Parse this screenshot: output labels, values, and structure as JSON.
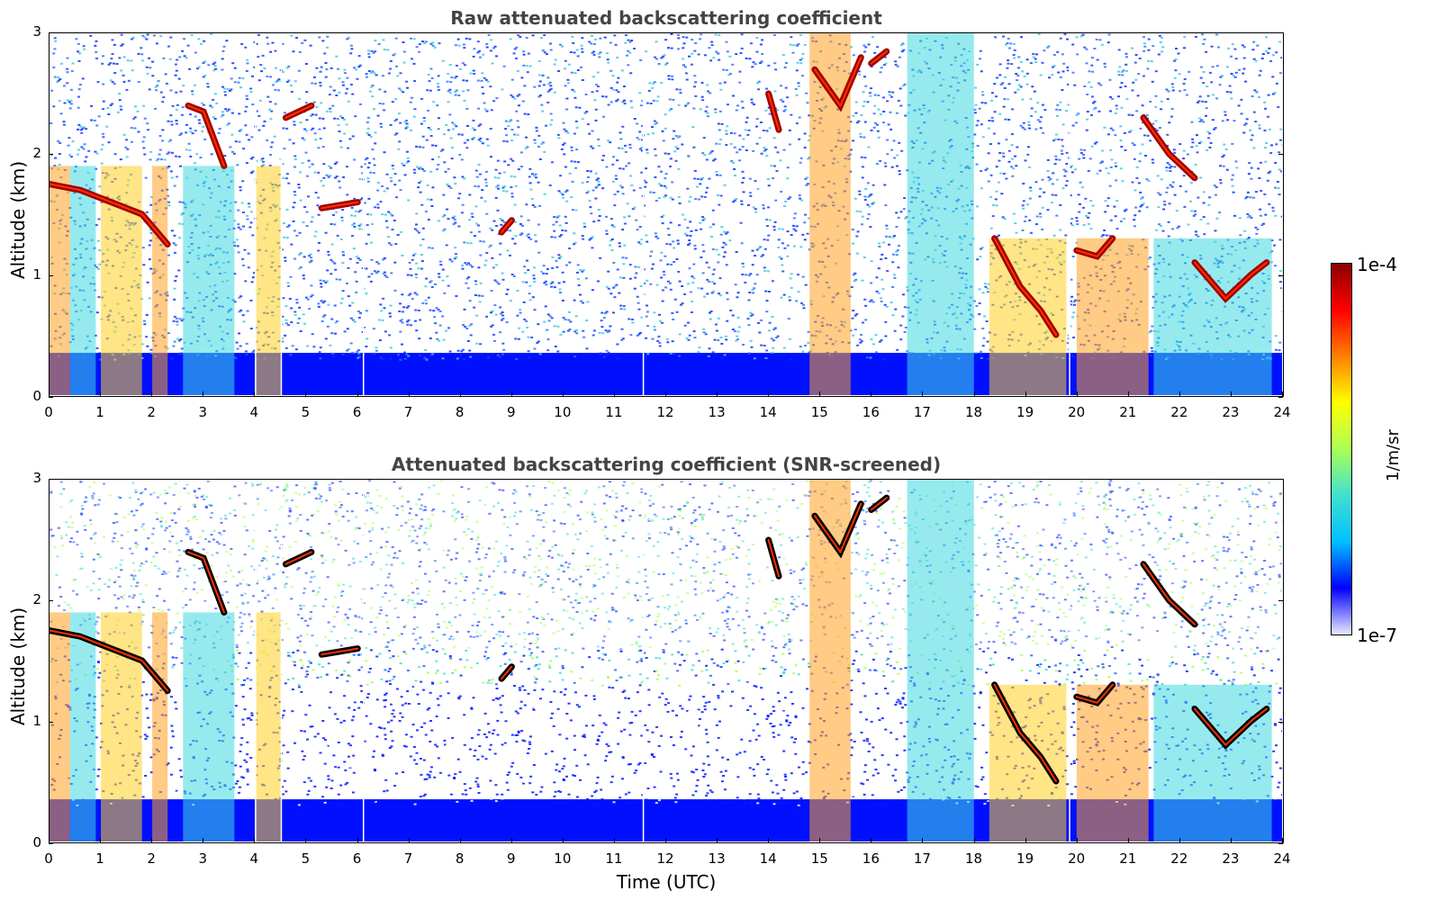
{
  "chart_data": [
    {
      "type": "heatmap",
      "title": "Raw attenuated backscattering coefficient",
      "xlabel": "",
      "ylabel": "Altitude (km)",
      "xlim": [
        0,
        24
      ],
      "ylim": [
        0,
        3
      ],
      "xticks": [
        "0",
        "1",
        "2",
        "3",
        "4",
        "5",
        "6",
        "7",
        "8",
        "9",
        "10",
        "11",
        "12",
        "13",
        "14",
        "15",
        "16",
        "17",
        "18",
        "19",
        "20",
        "21",
        "22",
        "23",
        "24"
      ],
      "yticks": [
        "0",
        "1",
        "2",
        "3"
      ],
      "cloud_layers": [
        {
          "t": [
            0.0,
            0.6,
            1.2,
            1.8,
            2.3
          ],
          "alt": [
            1.75,
            1.7,
            1.6,
            1.5,
            1.25
          ]
        },
        {
          "t": [
            2.7,
            3.0,
            3.4
          ],
          "alt": [
            2.4,
            2.35,
            1.9
          ]
        },
        {
          "t": [
            4.6,
            5.1
          ],
          "alt": [
            2.3,
            2.4
          ]
        },
        {
          "t": [
            5.3,
            6.0
          ],
          "alt": [
            1.55,
            1.6
          ]
        },
        {
          "t": [
            8.8,
            9.0
          ],
          "alt": [
            1.35,
            1.45
          ]
        },
        {
          "t": [
            14.0,
            14.2
          ],
          "alt": [
            2.5,
            2.2
          ]
        },
        {
          "t": [
            14.9,
            15.4,
            15.8
          ],
          "alt": [
            2.7,
            2.4,
            2.8
          ]
        },
        {
          "t": [
            16.0,
            16.3
          ],
          "alt": [
            2.75,
            2.85
          ]
        },
        {
          "t": [
            18.4,
            18.9,
            19.3,
            19.6
          ],
          "alt": [
            1.3,
            0.9,
            0.7,
            0.5
          ]
        },
        {
          "t": [
            20.0,
            20.4,
            20.7
          ],
          "alt": [
            1.2,
            1.15,
            1.3
          ]
        },
        {
          "t": [
            21.3,
            21.8,
            22.3
          ],
          "alt": [
            2.3,
            2.0,
            1.8
          ]
        },
        {
          "t": [
            22.3,
            22.9,
            23.4,
            23.7
          ],
          "alt": [
            1.1,
            0.8,
            1.0,
            1.1
          ]
        }
      ]
    },
    {
      "type": "heatmap",
      "title": "Attenuated backscattering coefficient (SNR-screened)",
      "xlabel": "Time (UTC)",
      "ylabel": "Altitude (km)",
      "xlim": [
        0,
        24
      ],
      "ylim": [
        0,
        3
      ],
      "xticks": [
        "0",
        "1",
        "2",
        "3",
        "4",
        "5",
        "6",
        "7",
        "8",
        "9",
        "10",
        "11",
        "12",
        "13",
        "14",
        "15",
        "16",
        "17",
        "18",
        "19",
        "20",
        "21",
        "22",
        "23",
        "24"
      ],
      "yticks": [
        "0",
        "1",
        "2",
        "3"
      ]
    }
  ],
  "colorbar": {
    "max_label": "1e-4",
    "min_label": "1e-7",
    "unit": "1/m/sr",
    "colors": [
      "#e8e8ff",
      "#0000ff",
      "#00c0ff",
      "#40e0d0",
      "#aaff55",
      "#ffff00",
      "#ff8000",
      "#ff0000",
      "#8b0000"
    ]
  }
}
